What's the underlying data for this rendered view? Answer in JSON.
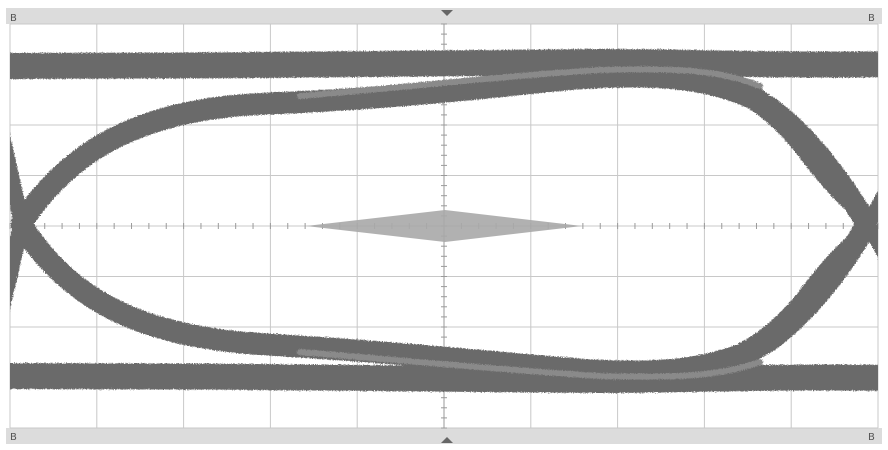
{
  "window": {
    "corner_labels": {
      "top_left": "B",
      "top_right": "B",
      "bottom_left": "B",
      "bottom_right": "B"
    }
  },
  "colors": {
    "background": "#ffffff",
    "frame": "#d9d9d9",
    "grid": "#c8c8c8",
    "trace": "#6e6e6e",
    "mask": "#a8a8a8",
    "marker": "#666666"
  },
  "display": {
    "graticule_columns": 10,
    "graticule_rows": 8,
    "grid": true,
    "mask_shape": "diamond",
    "trace_display": "eye diagram"
  }
}
